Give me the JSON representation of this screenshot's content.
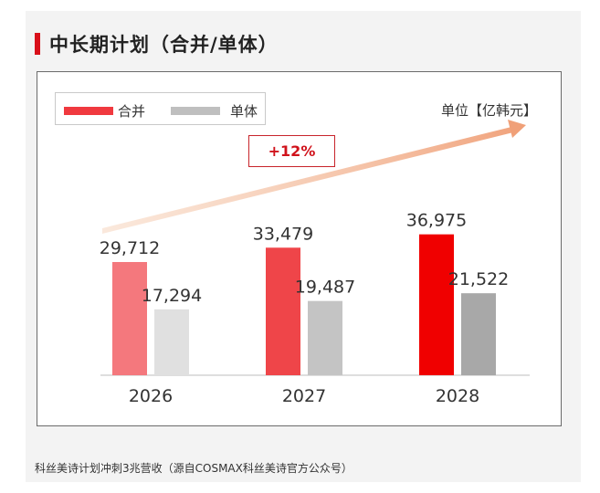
{
  "title": "中长期计划（合并/单体）",
  "unit": "单位【亿韩元】",
  "growth_label": "+12%",
  "caption": "科丝美诗计划冲刺3兆营收（源自COSMAX科丝美诗官方公众号）",
  "legend": [
    {
      "label": "合并",
      "color": "#f0393f"
    },
    {
      "label": "单体",
      "color": "#bfbfbf"
    }
  ],
  "chart_data": {
    "type": "bar",
    "title": "中长期计划（合并/单体）",
    "unit": "亿韩元",
    "categories": [
      "2026",
      "2027",
      "2028"
    ],
    "ylim": [
      0,
      40000
    ],
    "series": [
      {
        "name": "合并",
        "values": [
          29712,
          33479,
          36975
        ],
        "value_labels": [
          "29,712",
          "33,479",
          "36,975"
        ],
        "colors": [
          "#f4787d",
          "#ef4549",
          "#f00000"
        ]
      },
      {
        "name": "单体",
        "values": [
          17294,
          19487,
          21522
        ],
        "value_labels": [
          "17,294",
          "19,487",
          "21,522"
        ],
        "colors": [
          "#e0e0e0",
          "#c4c4c4",
          "#a8a8a8"
        ]
      }
    ],
    "annotation": "+12%"
  }
}
